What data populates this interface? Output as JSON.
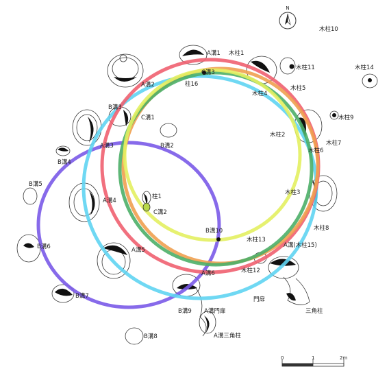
{
  "north_symbol": "N",
  "labels": {
    "mokuchu10": "木柱10",
    "mokuchu1": "木柱1",
    "mokuchu11": "木柱11",
    "mokuchu14": "木柱14",
    "mokuchu4": "木柱4",
    "mokuchu5": "木柱5",
    "mokuchu9": "木柱9",
    "mokuchu2": "木柱2",
    "mokuchu7": "木柱7",
    "mokuchu6": "木柱6",
    "mokuchu3": "木柱3",
    "mokuchu8": "木柱8",
    "mokuchu13": "木柱13",
    "mokuchu15": "A溝(木柱15)",
    "mokuchu12": "木柱12",
    "mokuchu16": "柱16",
    "a1": "A溝1",
    "a2": "A溝2",
    "a3": "A溝3",
    "a4": "A溝4",
    "a5": "A溝5",
    "a6": "A溝6",
    "a_mon": "A溝門扉",
    "a_sankaku": "A溝三角柱",
    "b1": "B溝1",
    "b2": "B溝2",
    "b3": "B溝3",
    "b4": "B溝4",
    "b5": "B溝5",
    "b6": "B溝6",
    "b7": "B溝7",
    "b8": "B溝8",
    "b9": "B溝9",
    "b10": "B溝10",
    "c1": "C溝1",
    "c2": "C溝2",
    "c3": "C溝3",
    "chu_i": "柱1",
    "mon": "門扉",
    "sankaku": "三角柱"
  },
  "scale_bar": {
    "ticks": [
      "0",
      "1",
      "2m"
    ]
  },
  "circle_colors": {
    "red": "#f06070",
    "cyan": "#5fd4f2",
    "orange": "#f0a050",
    "green": "#4caf68",
    "yellow": "#e3f060",
    "purple": "#7a5ae8"
  }
}
